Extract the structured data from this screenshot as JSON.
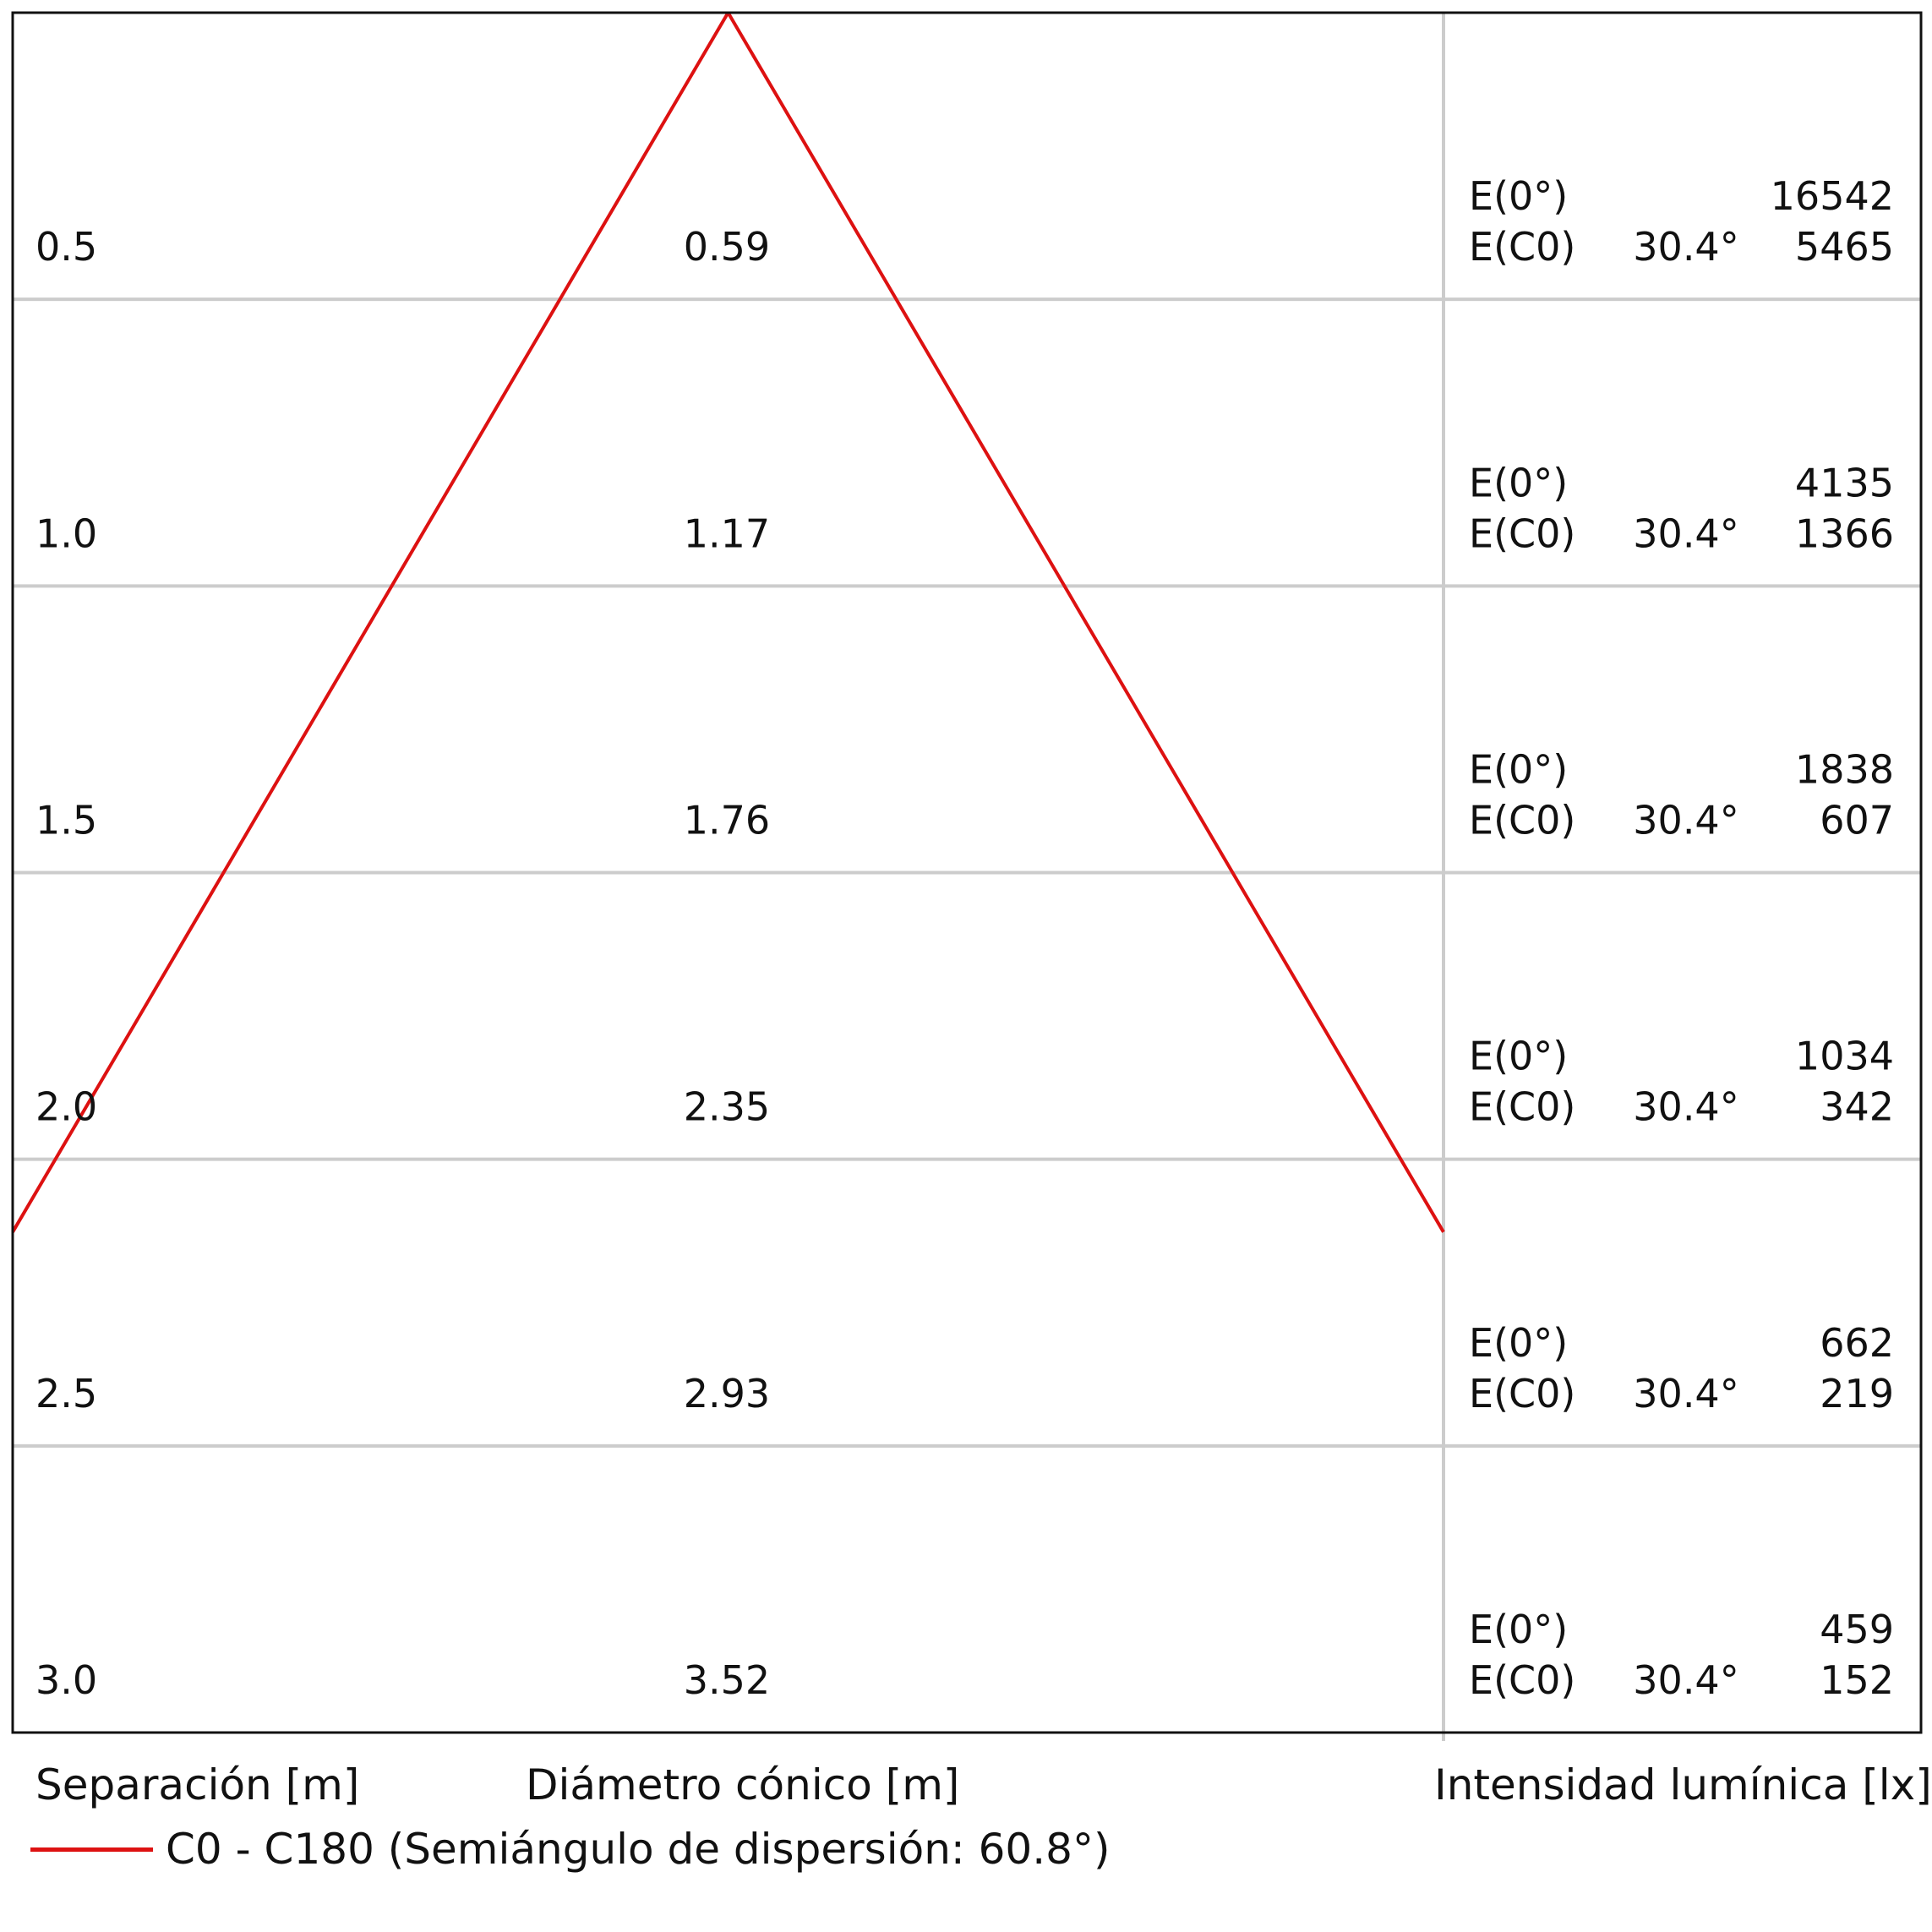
{
  "chart_data": {
    "type": "table",
    "rows": [
      {
        "separation": "0.5",
        "diameter": "0.59",
        "e0_label": "E(0°)",
        "e0_value": "16542",
        "ec_label": "E(C0)",
        "ec_angle": "30.4°",
        "ec_value": "5465"
      },
      {
        "separation": "1.0",
        "diameter": "1.17",
        "e0_label": "E(0°)",
        "e0_value": "4135",
        "ec_label": "E(C0)",
        "ec_angle": "30.4°",
        "ec_value": "1366"
      },
      {
        "separation": "1.5",
        "diameter": "1.76",
        "e0_label": "E(0°)",
        "e0_value": "1838",
        "ec_label": "E(C0)",
        "ec_angle": "30.4°",
        "ec_value": "607"
      },
      {
        "separation": "2.0",
        "diameter": "2.35",
        "e0_label": "E(0°)",
        "e0_value": "1034",
        "ec_label": "E(C0)",
        "ec_angle": "30.4°",
        "ec_value": "342"
      },
      {
        "separation": "2.5",
        "diameter": "2.93",
        "e0_label": "E(0°)",
        "e0_value": "662",
        "ec_label": "E(C0)",
        "ec_angle": "30.4°",
        "ec_value": "219"
      },
      {
        "separation": "3.0",
        "diameter": "3.52",
        "e0_label": "E(0°)",
        "e0_value": "459",
        "ec_label": "E(C0)",
        "ec_angle": "30.4°",
        "ec_value": "152"
      }
    ],
    "cone": {
      "series_name": "C0 - C180 (Semiángulo de dispersión: 60.8°)",
      "half_angle_deg": 60.8,
      "color": "#dd1111"
    },
    "column_labels": {
      "separation": "Separación [m]",
      "diameter": "Diámetro cónico [m]",
      "illuminance": "Intensidad lumínica [lx]"
    }
  }
}
